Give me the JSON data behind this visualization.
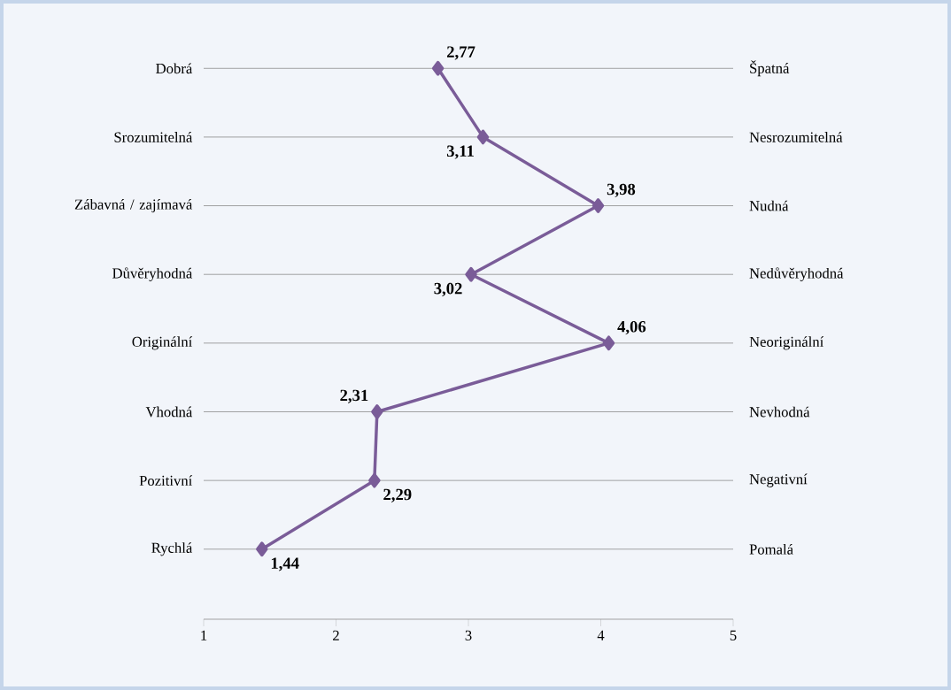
{
  "chart_data": {
    "type": "line",
    "orientation": "horizontal",
    "categories": [
      "Dobrá",
      "Srozumitelná",
      "Zábavná / zajímavá",
      "Důvěryhodná",
      "Originální",
      "Vhodná",
      "Pozitivní",
      "Rychlá"
    ],
    "y2_categories": [
      "Špatná",
      "Nesrozumitelná",
      "Nudná",
      "Nedůvěryhodná",
      "Neoriginální",
      "Nevhodná",
      "Negativní",
      "Pomalá"
    ],
    "values": [
      2.77,
      3.11,
      3.98,
      3.02,
      4.06,
      2.31,
      2.29,
      1.44
    ],
    "value_labels": [
      "2,77",
      "3,11",
      "3,98",
      "3,02",
      "4,06",
      "2,31",
      "2,29",
      "1,44"
    ],
    "color": "#7a5c98",
    "marker": "diamond",
    "grid": "y",
    "xlim": [
      1,
      5
    ],
    "xticks": [
      1,
      2,
      3,
      4,
      5
    ]
  }
}
